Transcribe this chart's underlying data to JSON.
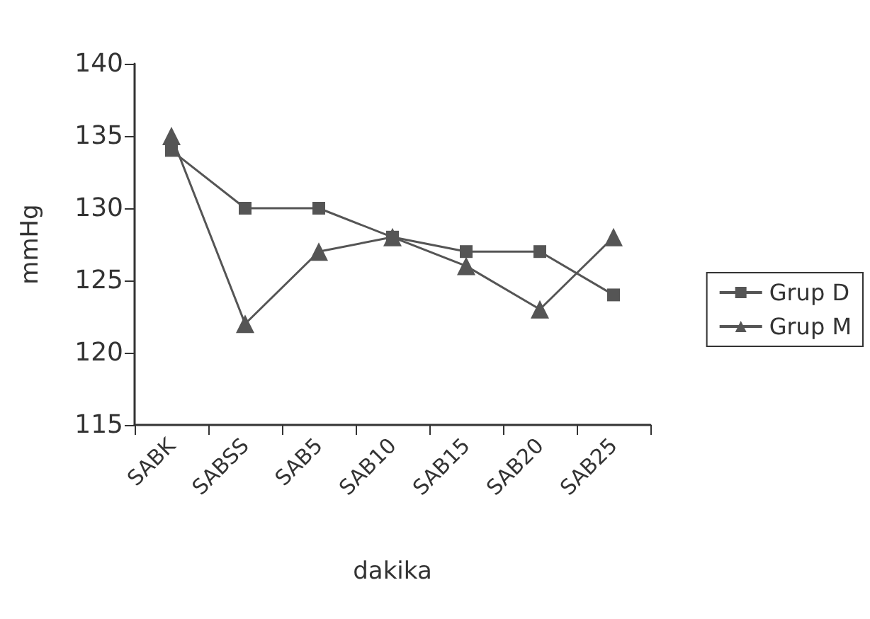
{
  "chart_data": {
    "type": "line",
    "xlabel": "dakika",
    "ylabel": "mmHg",
    "categories": [
      "SABK",
      "SABSS",
      "SAB5",
      "SAB10",
      "SAB15",
      "SAB20",
      "SAB25"
    ],
    "series": [
      {
        "name": "Grup D",
        "color": "#555555",
        "marker": "square",
        "values": [
          134,
          130,
          130,
          128,
          127,
          127,
          124
        ]
      },
      {
        "name": "Grup M",
        "color": "#555555",
        "marker": "triangle",
        "values": [
          135,
          122,
          127,
          128,
          126,
          123,
          128
        ]
      }
    ],
    "ylim": [
      115,
      140
    ],
    "yticks": [
      115,
      120,
      125,
      130,
      135,
      140
    ],
    "grid": false,
    "legend": "right",
    "line_style": "solid"
  }
}
